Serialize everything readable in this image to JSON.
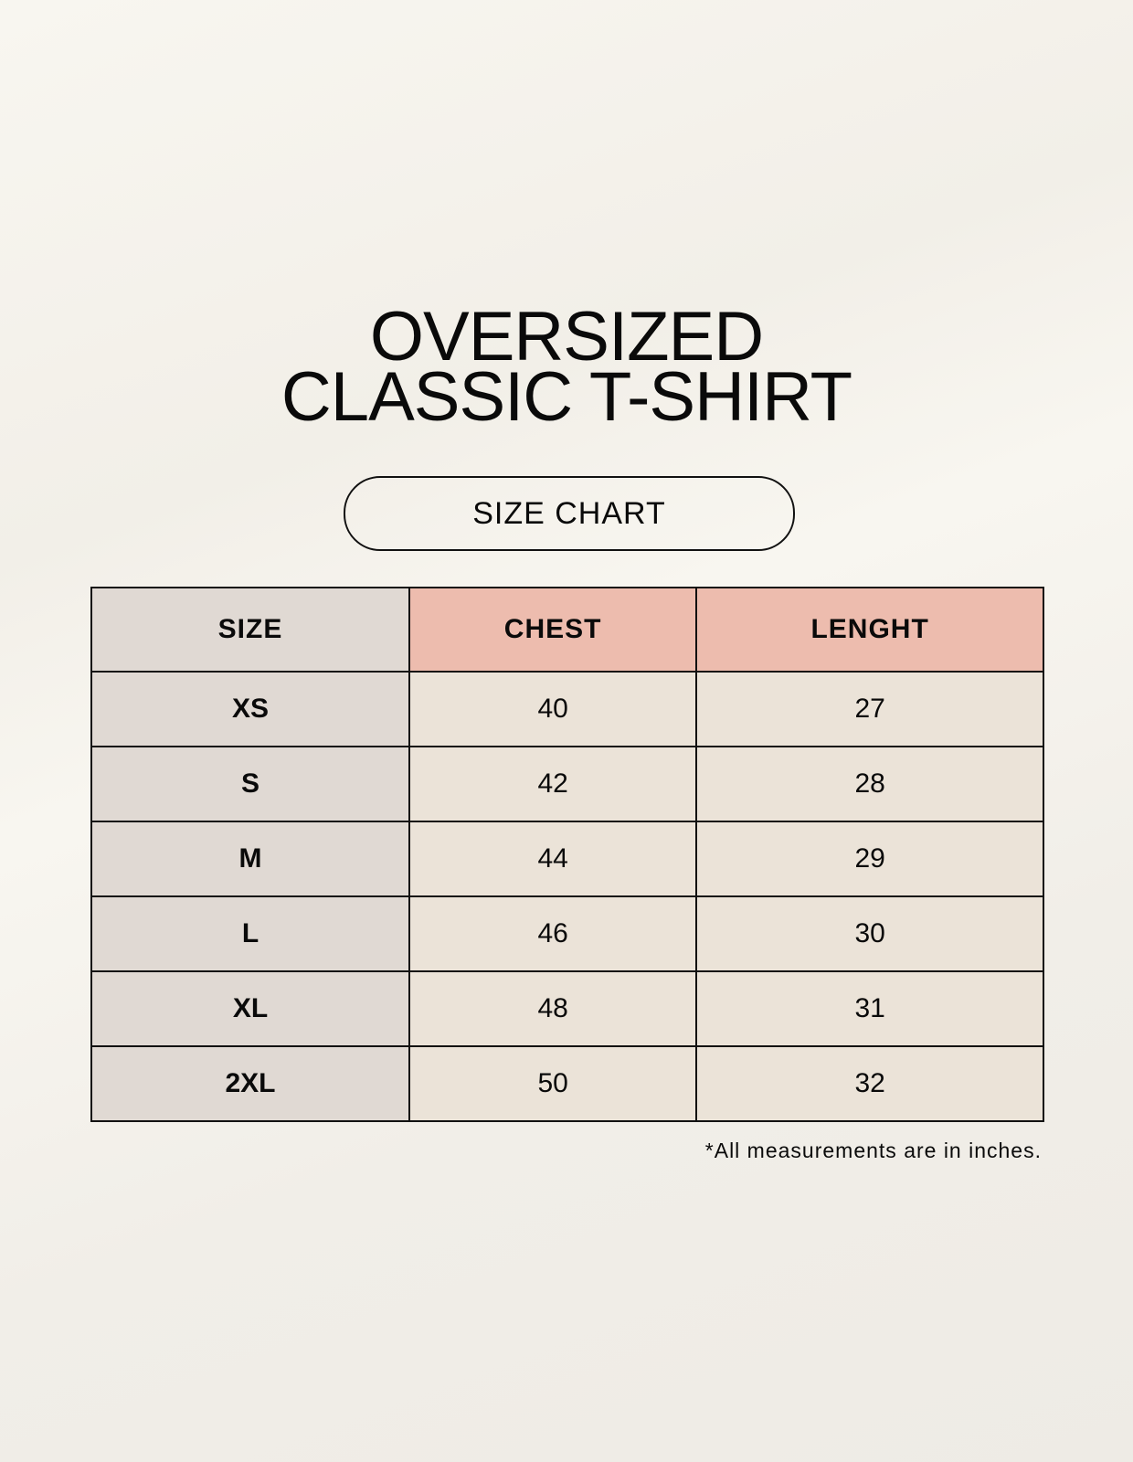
{
  "title": {
    "line1": "OVERSIZED",
    "line2": "CLASSIC T-SHIRT"
  },
  "badge": "SIZE CHART",
  "table": {
    "headers": [
      "SIZE",
      "CHEST",
      "LENGHT"
    ],
    "rows": [
      [
        "XS",
        "40",
        "27"
      ],
      [
        "S",
        "42",
        "28"
      ],
      [
        "M",
        "44",
        "29"
      ],
      [
        "L",
        "46",
        "30"
      ],
      [
        "XL",
        "48",
        "31"
      ],
      [
        "2XL",
        "50",
        "32"
      ]
    ]
  },
  "footnote": "*All measurements are in inches.",
  "colors": {
    "size_column": "#e0d9d3",
    "header_accent": "#edbcae",
    "cell": "#ebe3d8"
  }
}
